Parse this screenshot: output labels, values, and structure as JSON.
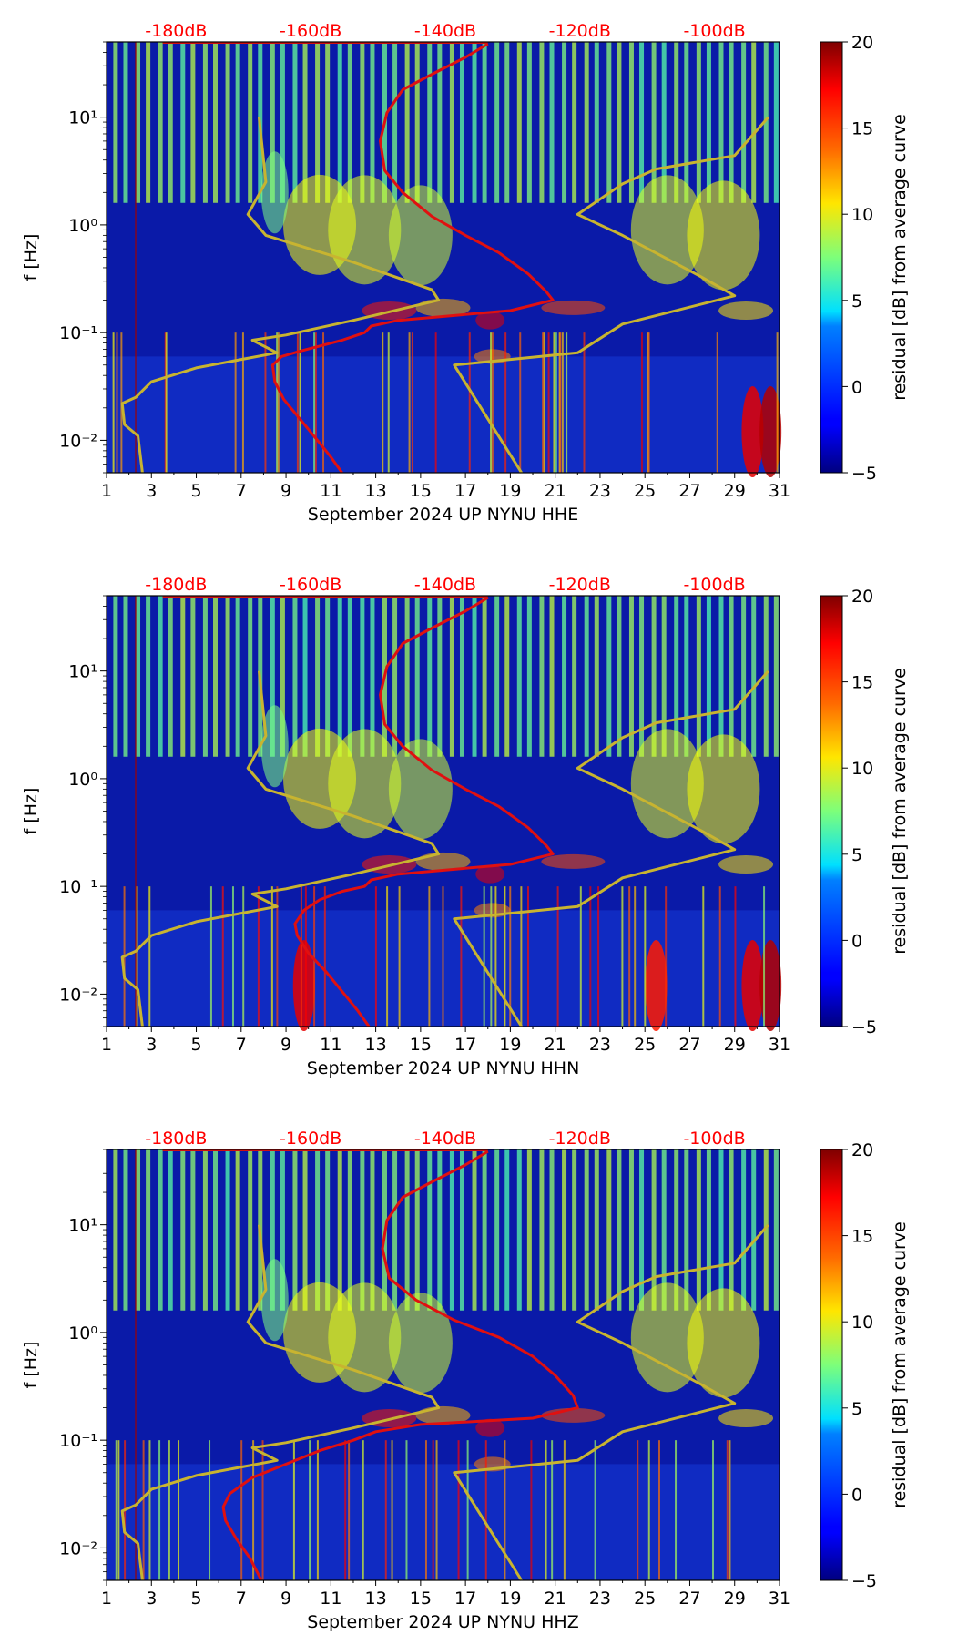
{
  "figure": {
    "panels": [
      {
        "id": "hhe",
        "xlabel": "September 2024 UP NYNU  HHE"
      },
      {
        "id": "hhn",
        "xlabel": "September 2024 UP NYNU  HHN"
      },
      {
        "id": "hhz",
        "xlabel": "September 2024 UP NYNU  HHZ"
      }
    ]
  },
  "chart_data": [
    {
      "type": "heatmap",
      "xlabel": "September 2024 UP NYNU  HHE",
      "ylabel": "f [Hz]",
      "x_ticks": [
        "1",
        "3",
        "5",
        "7",
        "9",
        "11",
        "13",
        "15",
        "17",
        "19",
        "21",
        "23",
        "25",
        "27",
        "29",
        "31"
      ],
      "xlim": [
        1,
        31
      ],
      "y_scale": "log",
      "ylim": [
        0.005,
        50
      ],
      "y_ticks": [
        {
          "value": 10,
          "label": "10¹"
        },
        {
          "value": 1,
          "label": "10⁰"
        },
        {
          "value": 0.1,
          "label": "10⁻¹"
        },
        {
          "value": 0.01,
          "label": "10⁻²"
        }
      ],
      "top_labels": [
        "-180dB",
        "-160dB",
        "-140dB",
        "-120dB",
        "-100dB"
      ],
      "colorbar": {
        "label": "residual [dB] from average curve",
        "ticks": [
          20,
          15,
          10,
          5,
          0,
          -5
        ],
        "range": [
          -5,
          20
        ],
        "colormap": "jet"
      },
      "noise_model_curve": {
        "color": "#c8b430",
        "points": [
          [
            7.8,
            10
          ],
          [
            8.1,
            2.5
          ],
          [
            7.3,
            1.25
          ],
          [
            8.1,
            0.8
          ],
          [
            12,
            0.45
          ],
          [
            15.5,
            0.25
          ],
          [
            15.8,
            0.2
          ],
          [
            12,
            0.13
          ],
          [
            9,
            0.095
          ],
          [
            7.5,
            0.085
          ],
          [
            8.6,
            0.065
          ],
          [
            5,
            0.047
          ],
          [
            3,
            0.035
          ],
          [
            2.3,
            0.025
          ],
          [
            1.7,
            0.022
          ],
          [
            1.8,
            0.014
          ],
          [
            2.4,
            0.011
          ],
          [
            2.6,
            0.005
          ]
        ]
      },
      "noise_model_curve_2": {
        "color": "#c8b430",
        "points": [
          [
            30.5,
            10
          ],
          [
            29,
            4.4
          ],
          [
            25.5,
            3.3
          ],
          [
            24,
            2.4
          ],
          [
            22,
            1.25
          ],
          [
            24,
            0.8
          ],
          [
            27.5,
            0.33
          ],
          [
            29,
            0.22
          ],
          [
            24,
            0.12
          ],
          [
            22,
            0.065
          ],
          [
            16.5,
            0.05
          ],
          [
            19.5,
            0.005
          ]
        ]
      },
      "average_psd_curve": {
        "color": "#e01010",
        "points": [
          [
            18,
            48
          ],
          [
            17,
            36
          ],
          [
            15.5,
            25
          ],
          [
            14.2,
            18
          ],
          [
            13.5,
            11
          ],
          [
            13.2,
            6
          ],
          [
            13.4,
            3.2
          ],
          [
            14.2,
            2
          ],
          [
            15.5,
            1.2
          ],
          [
            17,
            0.8
          ],
          [
            18.5,
            0.55
          ],
          [
            19.8,
            0.35
          ],
          [
            20.6,
            0.24
          ],
          [
            20.9,
            0.2
          ],
          [
            19,
            0.16
          ],
          [
            14,
            0.13
          ],
          [
            12.8,
            0.115
          ],
          [
            12.5,
            0.1
          ],
          [
            11.5,
            0.085
          ],
          [
            10.5,
            0.075
          ],
          [
            9.6,
            0.067
          ],
          [
            8.8,
            0.06
          ],
          [
            8.4,
            0.05
          ],
          [
            8.5,
            0.035
          ],
          [
            8.9,
            0.024
          ],
          [
            9.6,
            0.016
          ],
          [
            10.4,
            0.01
          ],
          [
            11,
            0.007
          ],
          [
            11.5,
            0.005
          ]
        ]
      }
    },
    {
      "type": "heatmap",
      "xlabel": "September 2024 UP NYNU  HHN",
      "ylabel": "f [Hz]",
      "x_ticks": [
        "1",
        "3",
        "5",
        "7",
        "9",
        "11",
        "13",
        "15",
        "17",
        "19",
        "21",
        "23",
        "25",
        "27",
        "29",
        "31"
      ],
      "xlim": [
        1,
        31
      ],
      "y_scale": "log",
      "ylim": [
        0.005,
        50
      ],
      "y_ticks": [
        {
          "value": 10,
          "label": "10¹"
        },
        {
          "value": 1,
          "label": "10⁰"
        },
        {
          "value": 0.1,
          "label": "10⁻¹"
        },
        {
          "value": 0.01,
          "label": "10⁻²"
        }
      ],
      "top_labels": [
        "-180dB",
        "-160dB",
        "-140dB",
        "-120dB",
        "-100dB"
      ],
      "colorbar": {
        "label": "residual [dB] from average curve",
        "ticks": [
          20,
          15,
          10,
          5,
          0,
          -5
        ],
        "range": [
          -5,
          20
        ],
        "colormap": "jet"
      },
      "noise_model_curve": {
        "color": "#c8b430",
        "points": [
          [
            7.8,
            10
          ],
          [
            8.1,
            2.5
          ],
          [
            7.3,
            1.25
          ],
          [
            8.1,
            0.8
          ],
          [
            12,
            0.45
          ],
          [
            15.5,
            0.25
          ],
          [
            15.8,
            0.2
          ],
          [
            12,
            0.13
          ],
          [
            9,
            0.095
          ],
          [
            7.5,
            0.085
          ],
          [
            8.6,
            0.065
          ],
          [
            5,
            0.047
          ],
          [
            3,
            0.035
          ],
          [
            2.3,
            0.025
          ],
          [
            1.7,
            0.022
          ],
          [
            1.8,
            0.014
          ],
          [
            2.4,
            0.011
          ],
          [
            2.6,
            0.005
          ]
        ]
      },
      "noise_model_curve_2": {
        "color": "#c8b430",
        "points": [
          [
            30.5,
            10
          ],
          [
            29,
            4.4
          ],
          [
            25.5,
            3.3
          ],
          [
            24,
            2.4
          ],
          [
            22,
            1.25
          ],
          [
            24,
            0.8
          ],
          [
            27.5,
            0.33
          ],
          [
            29,
            0.22
          ],
          [
            24,
            0.12
          ],
          [
            22,
            0.065
          ],
          [
            16.5,
            0.05
          ],
          [
            19.5,
            0.005
          ]
        ]
      },
      "average_psd_curve": {
        "color": "#e01010",
        "points": [
          [
            18,
            48
          ],
          [
            17,
            36
          ],
          [
            15.5,
            25
          ],
          [
            14.2,
            18
          ],
          [
            13.5,
            11
          ],
          [
            13.2,
            6
          ],
          [
            13.4,
            3.2
          ],
          [
            14.2,
            2
          ],
          [
            15.5,
            1.2
          ],
          [
            17,
            0.8
          ],
          [
            18.5,
            0.55
          ],
          [
            19.8,
            0.35
          ],
          [
            20.6,
            0.24
          ],
          [
            20.9,
            0.2
          ],
          [
            19,
            0.16
          ],
          [
            14,
            0.13
          ],
          [
            12.8,
            0.115
          ],
          [
            12.5,
            0.1
          ],
          [
            11.5,
            0.09
          ],
          [
            10.5,
            0.075
          ],
          [
            9.8,
            0.06
          ],
          [
            9.4,
            0.045
          ],
          [
            9.5,
            0.035
          ],
          [
            10,
            0.024
          ],
          [
            10.8,
            0.016
          ],
          [
            11.6,
            0.01
          ],
          [
            12.2,
            0.007
          ],
          [
            12.7,
            0.005
          ]
        ]
      }
    },
    {
      "type": "heatmap",
      "xlabel": "September 2024 UP NYNU  HHZ",
      "ylabel": "f [Hz]",
      "x_ticks": [
        "1",
        "3",
        "5",
        "7",
        "9",
        "11",
        "13",
        "15",
        "17",
        "19",
        "21",
        "23",
        "25",
        "27",
        "29",
        "31"
      ],
      "xlim": [
        1,
        31
      ],
      "y_scale": "log",
      "ylim": [
        0.005,
        50
      ],
      "y_ticks": [
        {
          "value": 10,
          "label": "10¹"
        },
        {
          "value": 1,
          "label": "10⁰"
        },
        {
          "value": 0.1,
          "label": "10⁻¹"
        },
        {
          "value": 0.01,
          "label": "10⁻²"
        }
      ],
      "top_labels": [
        "-180dB",
        "-160dB",
        "-140dB",
        "-120dB",
        "-100dB"
      ],
      "colorbar": {
        "label": "residual [dB] from average curve",
        "ticks": [
          20,
          15,
          10,
          5,
          0,
          -5
        ],
        "range": [
          -5,
          20
        ],
        "colormap": "jet"
      },
      "noise_model_curve": {
        "color": "#c8b430",
        "points": [
          [
            7.8,
            10
          ],
          [
            8.1,
            2.5
          ],
          [
            7.3,
            1.25
          ],
          [
            8.1,
            0.8
          ],
          [
            12,
            0.45
          ],
          [
            15.5,
            0.25
          ],
          [
            15.8,
            0.2
          ],
          [
            12,
            0.13
          ],
          [
            9,
            0.095
          ],
          [
            7.5,
            0.085
          ],
          [
            8.6,
            0.065
          ],
          [
            5,
            0.047
          ],
          [
            3,
            0.035
          ],
          [
            2.3,
            0.025
          ],
          [
            1.7,
            0.022
          ],
          [
            1.8,
            0.014
          ],
          [
            2.4,
            0.011
          ],
          [
            2.6,
            0.005
          ]
        ]
      },
      "noise_model_curve_2": {
        "color": "#c8b430",
        "points": [
          [
            30.5,
            10
          ],
          [
            29,
            4.4
          ],
          [
            25.5,
            3.3
          ],
          [
            24,
            2.4
          ],
          [
            22,
            1.25
          ],
          [
            24,
            0.8
          ],
          [
            27.5,
            0.33
          ],
          [
            29,
            0.22
          ],
          [
            24,
            0.12
          ],
          [
            22,
            0.065
          ],
          [
            16.5,
            0.05
          ],
          [
            19.5,
            0.005
          ]
        ]
      },
      "average_psd_curve": {
        "color": "#e01010",
        "points": [
          [
            18,
            48
          ],
          [
            17,
            36
          ],
          [
            15.5,
            25
          ],
          [
            14.2,
            18
          ],
          [
            13.5,
            11
          ],
          [
            13.3,
            6
          ],
          [
            13.6,
            3.2
          ],
          [
            14.8,
            2
          ],
          [
            16.5,
            1.3
          ],
          [
            18.5,
            0.9
          ],
          [
            20,
            0.6
          ],
          [
            21,
            0.4
          ],
          [
            21.8,
            0.26
          ],
          [
            22,
            0.2
          ],
          [
            20,
            0.16
          ],
          [
            15,
            0.14
          ],
          [
            13,
            0.12
          ],
          [
            12,
            0.1
          ],
          [
            10.5,
            0.08
          ],
          [
            9,
            0.06
          ],
          [
            7.5,
            0.045
          ],
          [
            6.5,
            0.032
          ],
          [
            6.2,
            0.024
          ],
          [
            6.3,
            0.018
          ],
          [
            6.8,
            0.012
          ],
          [
            7.4,
            0.008
          ],
          [
            7.9,
            0.005
          ]
        ]
      }
    }
  ]
}
